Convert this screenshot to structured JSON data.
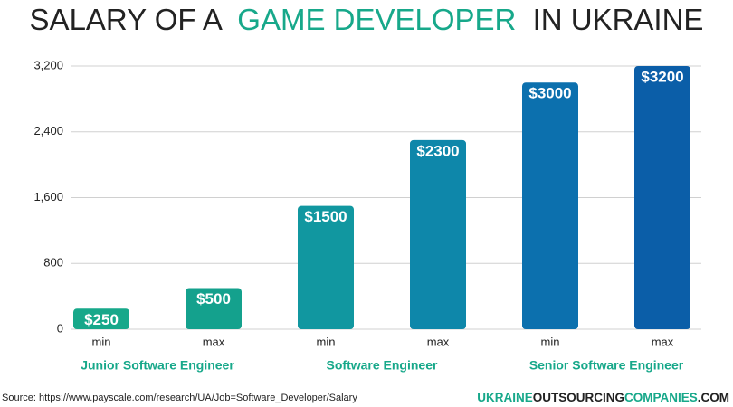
{
  "chart_data": {
    "type": "bar",
    "title": [
      "SALARY OF A",
      "GAME DEVELOPER",
      "IN UKRAINE"
    ],
    "categories": [
      "min",
      "max",
      "min",
      "max",
      "min",
      "max"
    ],
    "groups": [
      "Junior Software Engineer",
      "Software Engineer",
      "Senior Software Engineer"
    ],
    "values": [
      250,
      500,
      1500,
      2300,
      3000,
      3200
    ],
    "value_labels": [
      "$250",
      "$500",
      "$1500",
      "$2300",
      "$3000",
      "$3200"
    ],
    "colors": [
      "#17a88a",
      "#14a18d",
      "#1197a0",
      "#0e87aa",
      "#0c70ae",
      "#0b5ea8"
    ],
    "ylim": [
      0,
      3200
    ],
    "yticks": [
      0,
      800,
      {
        "value": 1600,
        "label": "1,600"
      },
      {
        "value": 2400,
        "label": "2,400"
      },
      {
        "value": 3200,
        "label": "3,200"
      }
    ],
    "grid": true,
    "source": "Source: https://www.payscale.com/research/UA/Job=Software_Developer/Salary",
    "brand": [
      "UKRAINE",
      "OUTSOURCING",
      "COMPANIES",
      ".COM"
    ]
  }
}
